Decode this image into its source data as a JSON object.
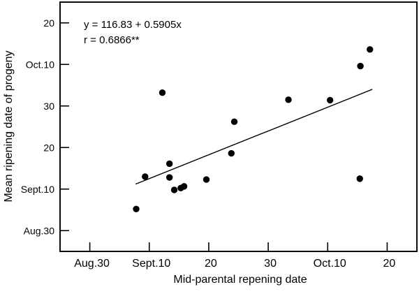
{
  "chart_data": {
    "type": "scatter",
    "annotation": {
      "equation": "y = 116.83 + 0.5905x",
      "correlation": "r = 0.6866**"
    },
    "xlabel": "Mid-parental repening date",
    "ylabel": "Mean ripening date of progeny",
    "x_ticks": [
      {
        "value": 0,
        "label": "Aug.30"
      },
      {
        "value": 10,
        "label": "Sept.10"
      },
      {
        "value": 20,
        "label": "20"
      },
      {
        "value": 30,
        "label": "30"
      },
      {
        "value": 40,
        "label": "Oct.10"
      },
      {
        "value": 50,
        "label": "20"
      }
    ],
    "y_ticks": [
      {
        "value": 0,
        "label": "Aug.30"
      },
      {
        "value": 10,
        "label": "Sept.10"
      },
      {
        "value": 20,
        "label": "20"
      },
      {
        "value": 30,
        "label": "30"
      },
      {
        "value": 40,
        "label": "Oct.10"
      },
      {
        "value": 50,
        "label": "20"
      }
    ],
    "xlim": [
      -5,
      55
    ],
    "ylim": [
      -5,
      55
    ],
    "axis_units": "days after Aug.30, ticks equally spaced",
    "points": [
      [
        7.8,
        5.2
      ],
      [
        9.3,
        13.0
      ],
      [
        12.2,
        33.2
      ],
      [
        13.4,
        16.1
      ],
      [
        13.4,
        12.8
      ],
      [
        14.2,
        9.8
      ],
      [
        15.3,
        10.25
      ],
      [
        15.85,
        10.65
      ],
      [
        19.6,
        12.3
      ],
      [
        23.8,
        18.6
      ],
      [
        24.3,
        26.2
      ],
      [
        33.4,
        31.5
      ],
      [
        40.4,
        31.4
      ],
      [
        45.4,
        12.5
      ],
      [
        45.5,
        39.6
      ],
      [
        47.1,
        43.6
      ]
    ],
    "regression_line": {
      "x1": 7.7,
      "y1": 11.2,
      "x2": 47.5,
      "y2": 34.0
    },
    "marker": {
      "shape": "circle",
      "radius": 4.7,
      "color": "#000000"
    },
    "colors": {
      "axis": "#000000",
      "line": "#000000",
      "background": "#ffffff"
    }
  }
}
